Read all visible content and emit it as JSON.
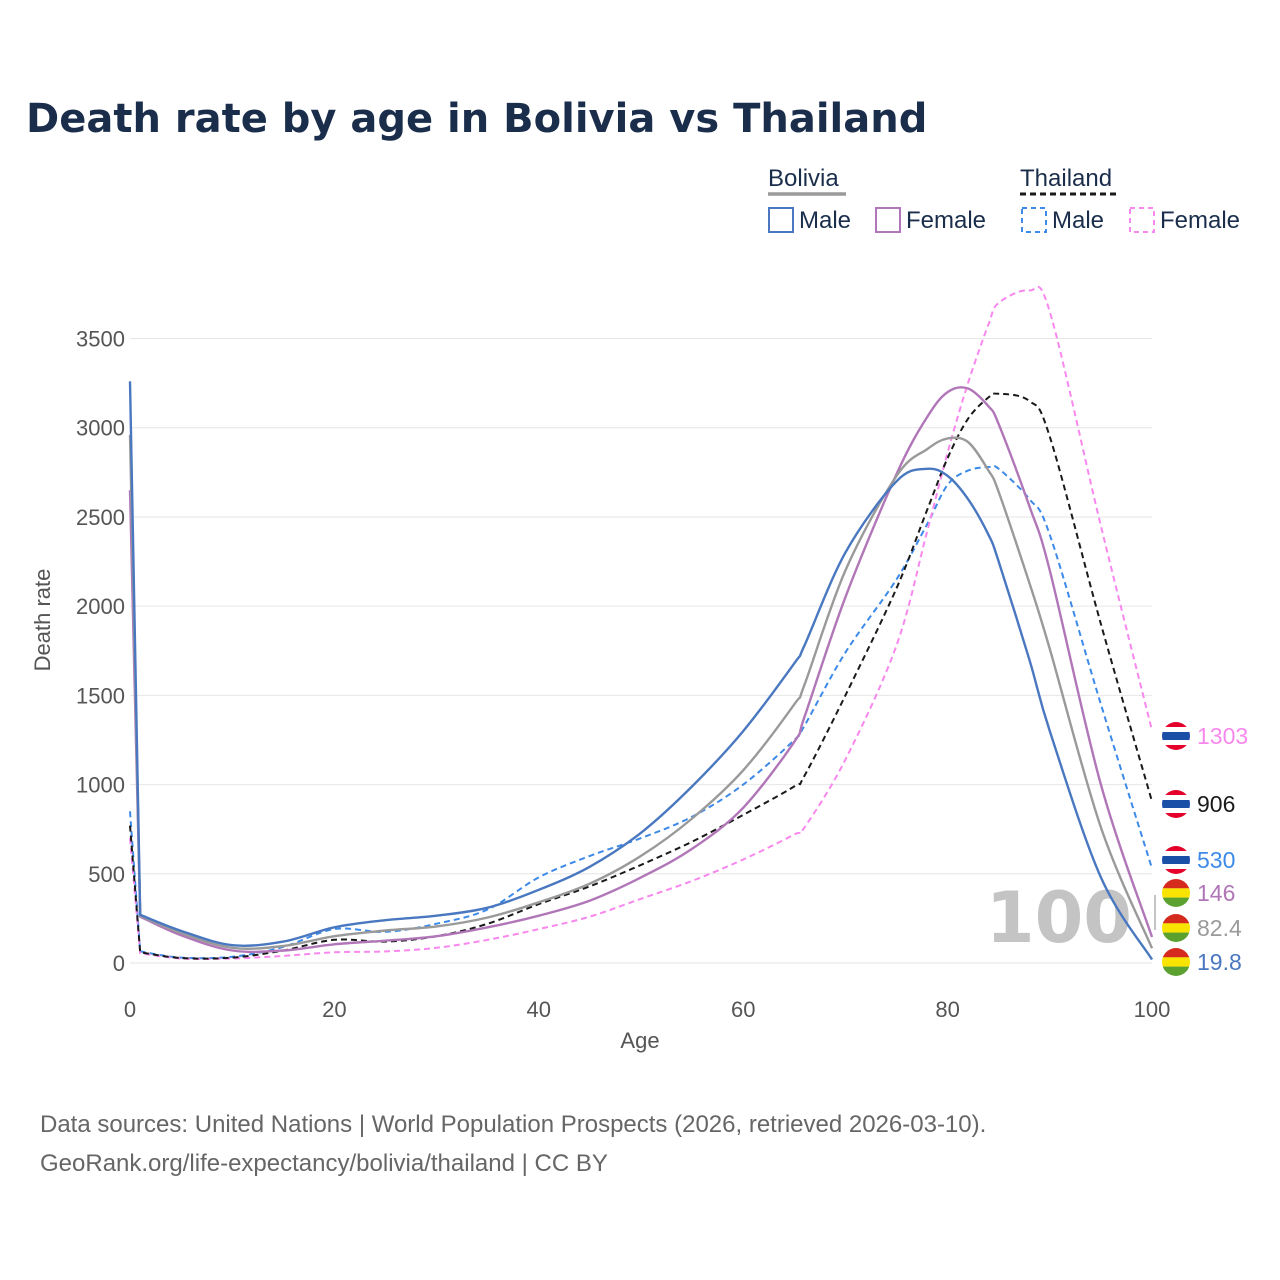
{
  "title": "Death rate by age in Bolivia vs Thailand",
  "legend": {
    "groups": [
      {
        "name": "Bolivia",
        "items": [
          "Male",
          "Female"
        ]
      },
      {
        "name": "Thailand",
        "items": [
          "Male",
          "Female"
        ]
      }
    ]
  },
  "watermark": "100",
  "sources": {
    "line1": "Data sources: United Nations | World Population Prospects (2026, retrieved 2026-03-10).",
    "line2": "GeoRank.org/life-expectancy/bolivia/thailand | CC BY"
  },
  "colors": {
    "bolivia_male": "#4a78c0",
    "bolivia_female": "#b176b8",
    "bolivia_total": "#9a9a9a",
    "thailand_male": "#3d8ae8",
    "thailand_female": "#f888ee",
    "thailand_total": "#1a1a1a",
    "grid": "#e6e6e6",
    "title": "#1a2e4c"
  },
  "chart_data": {
    "type": "line",
    "title": "Death rate by age in Bolivia vs Thailand",
    "xlabel": "Age",
    "ylabel": "Death rate",
    "xlim": [
      0,
      100
    ],
    "ylim": [
      0,
      3800
    ],
    "xticks": [
      0,
      20,
      40,
      60,
      80,
      100
    ],
    "yticks": [
      0,
      500,
      1000,
      1500,
      2000,
      2500,
      3000,
      3500
    ],
    "grid": true,
    "x": [
      0,
      1,
      5,
      10,
      15,
      20,
      25,
      30,
      35,
      40,
      45,
      50,
      55,
      60,
      65,
      66,
      70,
      75,
      78,
      80,
      82,
      84,
      85,
      88,
      90,
      95,
      100
    ],
    "series": [
      {
        "name": "Bolivia Male",
        "country": "Bolivia",
        "sex": "Male",
        "dash": false,
        "color": "#4a78c0",
        "end_label": "19.8",
        "values": [
          3260,
          270,
          180,
          100,
          120,
          200,
          240,
          265,
          310,
          410,
          540,
          730,
          990,
          1300,
          1680,
          1780,
          2300,
          2700,
          2770,
          2730,
          2600,
          2400,
          2250,
          1700,
          1300,
          480,
          19.8
        ]
      },
      {
        "name": "Bolivia Female",
        "country": "Bolivia",
        "sex": "Female",
        "dash": false,
        "color": "#b176b8",
        "end_label": "146",
        "values": [
          2650,
          260,
          155,
          70,
          70,
          105,
          125,
          150,
          200,
          265,
          350,
          480,
          640,
          870,
          1240,
          1380,
          2050,
          2740,
          3060,
          3200,
          3220,
          3120,
          3020,
          2560,
          2200,
          1000,
          146
        ]
      },
      {
        "name": "Bolivia Total",
        "country": "Bolivia",
        "sex": "Total",
        "dash": false,
        "color": "#9a9a9a",
        "end_label": "82.4",
        "values": [
          2960,
          265,
          168,
          85,
          95,
          150,
          182,
          205,
          255,
          340,
          445,
          600,
          810,
          1080,
          1450,
          1560,
          2200,
          2730,
          2880,
          2940,
          2920,
          2760,
          2640,
          2130,
          1760,
          760,
          82.4
        ]
      },
      {
        "name": "Thailand Male",
        "country": "Thailand",
        "sex": "Male",
        "dash": true,
        "color": "#3d8ae8",
        "end_label": "530",
        "values": [
          850,
          65,
          30,
          35,
          90,
          190,
          175,
          220,
          300,
          480,
          600,
          700,
          820,
          1000,
          1250,
          1330,
          1740,
          2150,
          2460,
          2680,
          2760,
          2780,
          2770,
          2600,
          2400,
          1450,
          530
        ]
      },
      {
        "name": "Thailand Female",
        "country": "Thailand",
        "sex": "Female",
        "dash": true,
        "color": "#f888ee",
        "end_label": "1303",
        "values": [
          700,
          55,
          25,
          25,
          40,
          60,
          65,
          85,
          130,
          190,
          260,
          360,
          460,
          580,
          720,
          760,
          1140,
          1780,
          2420,
          2860,
          3250,
          3580,
          3700,
          3770,
          3650,
          2450,
          1303
        ]
      },
      {
        "name": "Thailand Total",
        "country": "Thailand",
        "sex": "Total",
        "dash": true,
        "color": "#1a1a1a",
        "end_label": "906",
        "values": [
          770,
          60,
          28,
          30,
          70,
          130,
          120,
          150,
          220,
          330,
          430,
          550,
          680,
          830,
          990,
          1050,
          1500,
          2100,
          2540,
          2830,
          3050,
          3170,
          3190,
          3150,
          2950,
          1900,
          906
        ]
      }
    ]
  }
}
